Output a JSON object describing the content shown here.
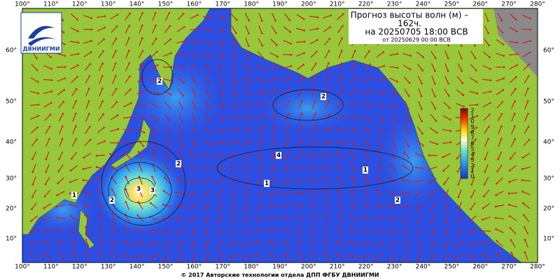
{
  "header": {
    "title": "Прогноз высоты волн (м) –",
    "lead": "162ч.",
    "valid": "на 20250705 18:00 ВСВ",
    "issued": "от 20250629 00:00 ВСВ"
  },
  "logo": "ДВНИИГМИ",
  "longitudes": [
    "100°",
    "110°",
    "120°",
    "130°",
    "140°",
    "150°",
    "160°",
    "170°",
    "180°",
    "190°",
    "200°",
    "210°",
    "220°",
    "230°",
    "240°",
    "250°",
    "260°",
    "270°",
    "280°"
  ],
  "latitudes": [
    "60°",
    "50°",
    "40°",
    "30°",
    "20°",
    "10°"
  ],
  "colorbar": [
    "2",
    "1",
    "0",
    "9",
    "8",
    "7",
    "6",
    "5",
    "4",
    "3",
    "2",
    "1",
    "0"
  ],
  "contours": [
    "2",
    "2",
    "4",
    "1",
    "1",
    "2",
    "3",
    "2",
    "2",
    "1",
    "3"
  ],
  "footer": "© 2017 Авторские технологии отдела ДПП ФГБУ ДВНИИГМИ"
}
